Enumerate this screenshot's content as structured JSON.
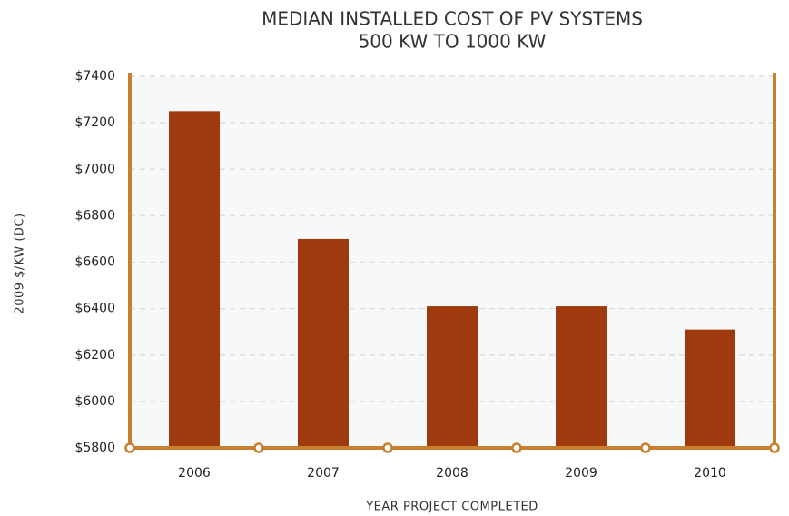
{
  "chart_data": {
    "type": "bar",
    "title": "MEDIAN INSTALLED COST OF PV SYSTEMS",
    "subtitle": "500 KW TO 1000 KW",
    "x_label": "YEAR PROJECT COMPLETED",
    "y_label": "2009 $/KW (DC)",
    "categories": [
      "2006",
      "2007",
      "2008",
      "2009",
      "2010"
    ],
    "values": [
      7250,
      6700,
      6410,
      6410,
      6310
    ],
    "color": "#9e3a0e",
    "ylim": [
      5800,
      7400
    ],
    "yticks": [
      {
        "value": 5800,
        "label": "$5800"
      },
      {
        "value": 6000,
        "label": "$6000"
      },
      {
        "value": 6200,
        "label": "$6200"
      },
      {
        "value": 6400,
        "label": "$6400"
      },
      {
        "value": 6600,
        "label": "$6600"
      },
      {
        "value": 6800,
        "label": "$6800"
      },
      {
        "value": 7000,
        "label": "$7000"
      },
      {
        "value": 7200,
        "label": "$7200"
      },
      {
        "value": 7400,
        "label": "$7400"
      }
    ],
    "grid": true
  }
}
